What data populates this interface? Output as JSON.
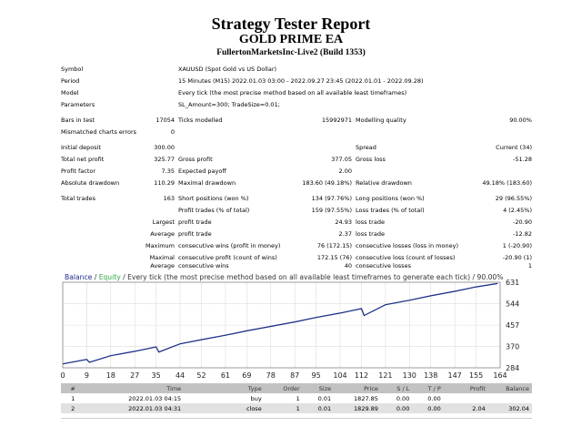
{
  "report": {
    "title": "Strategy Tester Report",
    "ea_name": "GOLD PRIME EA",
    "server": "FullertonMarketsInc-Live2 (Build 1353)"
  },
  "info": [
    {
      "label": "Symbol",
      "value": "XAUUSD (Spot Gold vs US Dollar)"
    },
    {
      "label": "Period",
      "value": "15 Minutes (M15) 2022.01.03 03:00 - 2022.09.27 23:45 (2022.01.01 - 2022.09.28)"
    },
    {
      "label": "Model",
      "value": "Every tick (the most precise method based on all available least timeframes)"
    },
    {
      "label": "Parameters",
      "value": "SL_Amount=300; TradeSize=0.01;"
    }
  ],
  "stats": {
    "bars_in_test": {
      "label": "Bars in test",
      "value": "17054"
    },
    "ticks_modelled": {
      "label": "Ticks modelled",
      "value": "15992971"
    },
    "modelling_quality": {
      "label": "Modelling quality",
      "value": "90.00%"
    },
    "mismatched": {
      "label": "Mismatched charts errors",
      "value": "0"
    },
    "initial_deposit": {
      "label": "Initial deposit",
      "value": "300.00"
    },
    "spread": {
      "label": "Spread",
      "value": "Current (34)"
    },
    "total_net_profit": {
      "label": "Total net profit",
      "value": "325.77"
    },
    "gross_profit": {
      "label": "Gross profit",
      "value": "377.05"
    },
    "gross_loss": {
      "label": "Gross loss",
      "value": "-51.28"
    },
    "profit_factor": {
      "label": "Profit factor",
      "value": "7.35"
    },
    "expected_payoff": {
      "label": "Expected payoff",
      "value": "2.00"
    },
    "absolute_drawdown": {
      "label": "Absolute drawdown",
      "value": "110.29"
    },
    "maximal_drawdown": {
      "label": "Maximal drawdown",
      "value": "183.60 (49.18%)"
    },
    "relative_drawdown": {
      "label": "Relative drawdown",
      "value": "49.18% (183.60)"
    },
    "total_trades": {
      "label": "Total trades",
      "value": "163"
    },
    "short_positions": {
      "label": "Short positions (won %)",
      "value": "134 (97.76%)"
    },
    "long_positions": {
      "label": "Long positions (won %)",
      "value": "29 (96.55%)"
    },
    "profit_trades": {
      "label": "Profit trades (% of total)",
      "value": "159 (97.55%)"
    },
    "loss_trades": {
      "label": "Loss trades (% of total)",
      "value": "4 (2.45%)"
    },
    "largest_profit": {
      "pre": "Largest",
      "label": "profit trade",
      "value": "24.93"
    },
    "largest_loss": {
      "label": "loss trade",
      "value": "-20.90"
    },
    "average_profit": {
      "pre": "Average",
      "label": "profit trade",
      "value": "2.37"
    },
    "average_loss": {
      "label": "loss trade",
      "value": "-12.82"
    },
    "max_cons_wins": {
      "pre": "Maximum",
      "label": "consecutive wins (profit in money)",
      "value": "76 (172.15)"
    },
    "max_cons_losses": {
      "label": "consecutive losses (loss in money)",
      "value": "1 (-20.90)"
    },
    "maximal_cons_profit": {
      "pre": "Maximal",
      "label": "consecutive profit (count of wins)",
      "value": "172.15 (76)"
    },
    "maximal_cons_loss": {
      "label": "consecutive loss (count of losses)",
      "value": "-20.90 (1)"
    },
    "avg_cons_wins": {
      "pre": "Average",
      "label": "consecutive wins",
      "value": "40"
    },
    "avg_cons_losses": {
      "label": "consecutive losses",
      "value": "1"
    }
  },
  "chart_data": {
    "type": "line",
    "legend": {
      "balance": "Balance",
      "sep": " / ",
      "equity": "Equity",
      "text": " / Every tick (the most precise method based on all available least timeframes to generate each tick) / 90.00%"
    },
    "colors": {
      "balance": "#1f2a8c",
      "equity": "#2fa84a",
      "legend_text": "#333333"
    },
    "x_ticks": [
      "0",
      "9",
      "18",
      "27",
      "35",
      "44",
      "52",
      "61",
      "69",
      "78",
      "87",
      "95",
      "104",
      "112",
      "121",
      "130",
      "138",
      "147",
      "155",
      "164"
    ],
    "y_ticks": [
      "631",
      "544",
      "457",
      "370",
      "284"
    ],
    "xlim": [
      0,
      164
    ],
    "ylim": [
      284,
      631
    ],
    "series": [
      {
        "name": "Balance",
        "x": [
          0,
          9,
          10,
          18,
          27,
          35,
          36,
          44,
          52,
          61,
          69,
          78,
          87,
          95,
          104,
          112,
          113,
          121,
          130,
          138,
          147,
          155,
          163
        ],
        "values": [
          300,
          318,
          306,
          333,
          351,
          369,
          348,
          381,
          398,
          416,
          434,
          452,
          470,
          488,
          506,
          524,
          496,
          540,
          558,
          576,
          594,
          612,
          626
        ]
      }
    ]
  },
  "deals": {
    "headers": [
      "#",
      "Time",
      "Type",
      "Order",
      "Size",
      "Price",
      "S / L",
      "T / P",
      "Profit",
      "Balance"
    ],
    "rows": [
      [
        "1",
        "2022.01.03 04:15",
        "buy",
        "1",
        "0.01",
        "1827.85",
        "0.00",
        "0.00",
        "",
        ""
      ],
      [
        "2",
        "2022.01.03 04:31",
        "close",
        "1",
        "0.01",
        "1829.89",
        "0.00",
        "0.00",
        "2.04",
        "302.04"
      ]
    ]
  }
}
